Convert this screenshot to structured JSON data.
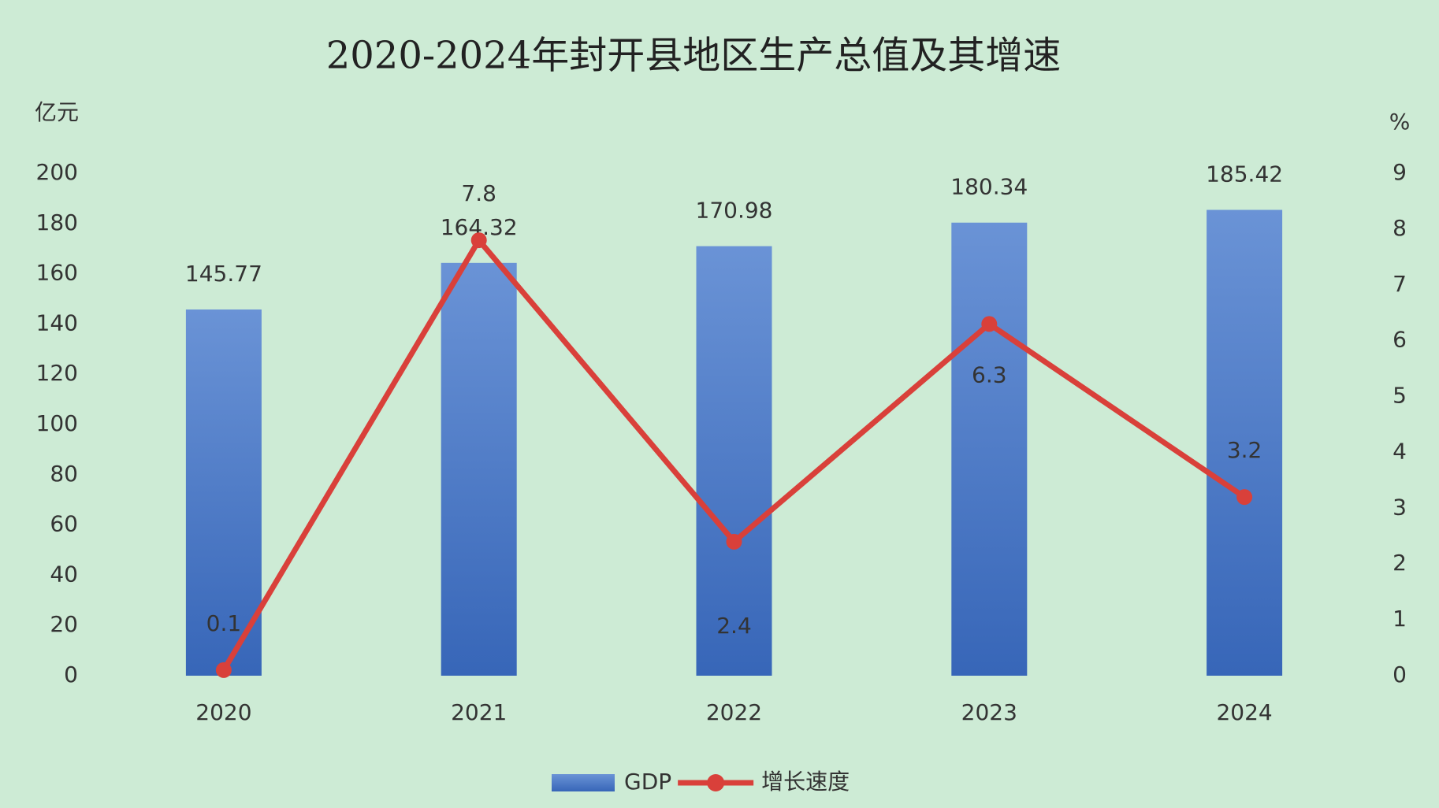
{
  "chart_data": {
    "type": "bar",
    "title": "2020-2024年封开县地区生产总值及其增速",
    "y_label": "亿元",
    "y2_label": "%",
    "categories": [
      "2020",
      "2021",
      "2022",
      "2023",
      "2024"
    ],
    "series": [
      {
        "name": "GDP",
        "type": "bar",
        "color": "#4472c4",
        "values": [
          145.77,
          164.32,
          170.98,
          180.34,
          185.42
        ]
      },
      {
        "name": "增长速度",
        "type": "line",
        "axis": "y2",
        "color": "#d9403a",
        "values": [
          0.1,
          7.8,
          2.4,
          6.3,
          3.2
        ]
      }
    ],
    "ylim": [
      0,
      200
    ],
    "yticks": [
      0,
      20,
      40,
      60,
      80,
      100,
      120,
      140,
      160,
      180,
      200
    ],
    "y2lim": [
      0,
      9
    ],
    "y2ticks": [
      0,
      1,
      2,
      3,
      4,
      5,
      6,
      7,
      8,
      9
    ],
    "grid": false,
    "legend": "bottom"
  }
}
